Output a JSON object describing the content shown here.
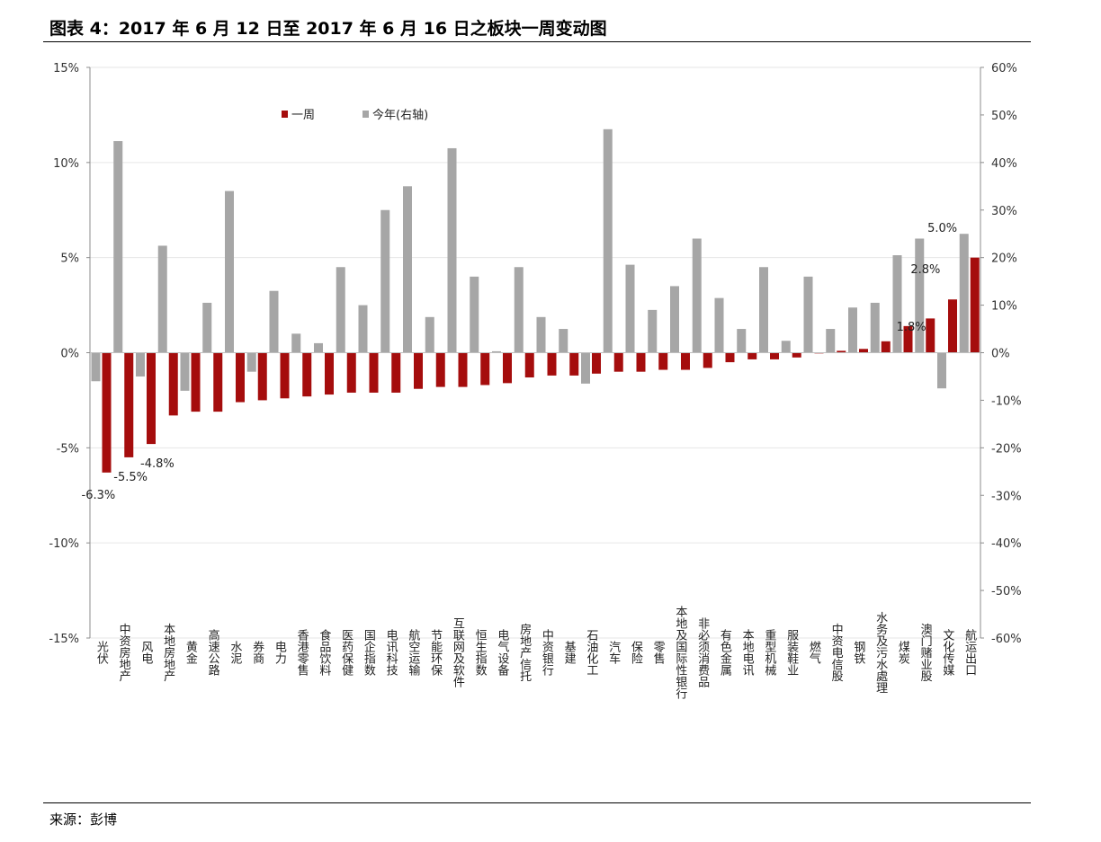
{
  "header": {
    "title": "图表 4：2017 年 6 月 12 日至 2017 年 6 月 16 日之板块一周变动图"
  },
  "footer": {
    "source": "来源：彭博"
  },
  "chart_data": {
    "type": "bar",
    "title": "图表 4：2017 年 6 月 12 日至 2017 年 6 月 16 日之板块一周变动图",
    "categories": [
      "光伏",
      "中资房地产",
      "风电",
      "本地房地产",
      "黄金",
      "高速公路",
      "水泥",
      "券商",
      "电力",
      "香港零售",
      "食品饮料",
      "医药保健",
      "国企指数",
      "电讯科技",
      "航空运输",
      "节能环保",
      "互联网及软件",
      "恒生指数",
      "电气设备",
      "房地产信托",
      "中资银行",
      "基建",
      "石油化工",
      "汽车",
      "保险",
      "零售",
      "本地及国际性银行",
      "非必须消费品",
      "有色金属",
      "本地电讯",
      "重型机械",
      "服装鞋业",
      "燃气",
      "中资电信股",
      "钢铁",
      "水务及污水處理",
      "煤炭",
      "澳门赌业股",
      "文化传媒",
      "航运出口"
    ],
    "series": [
      {
        "name": "一周",
        "axis": "left",
        "color": "#a50d0d",
        "values": [
          -6.3,
          -5.5,
          -4.8,
          -3.3,
          -3.1,
          -3.1,
          -2.6,
          -2.5,
          -2.4,
          -2.3,
          -2.2,
          -2.1,
          -2.1,
          -2.1,
          -1.9,
          -1.8,
          -1.8,
          -1.7,
          -1.6,
          -1.3,
          -1.2,
          -1.2,
          -1.1,
          -1.0,
          -1.0,
          -0.9,
          -0.9,
          -0.8,
          -0.5,
          -0.35,
          -0.35,
          -0.25,
          0.0,
          0.1,
          0.2,
          0.6,
          1.4,
          1.8,
          2.8,
          5.0
        ]
      },
      {
        "name": "今年(右轴)",
        "axis": "right",
        "color": "#a6a6a6",
        "values": [
          -6,
          44.5,
          -5,
          22.5,
          -8,
          10.5,
          34,
          -4,
          13,
          4,
          2,
          18,
          10,
          30,
          35,
          7.5,
          43,
          16,
          0.3,
          18,
          7.5,
          5,
          -6.5,
          47,
          18.5,
          9,
          14,
          24,
          11.5,
          5,
          18,
          2.5,
          16,
          5,
          9.5,
          10.5,
          20.5,
          24,
          -7.5,
          25
        ]
      }
    ],
    "data_labels": [
      {
        "category": "光伏",
        "text": "-6.3%"
      },
      {
        "category": "中资房地产",
        "text": "-5.5%"
      },
      {
        "category": "风电",
        "text": "-4.8%"
      },
      {
        "category": "澳门赌业股",
        "text": "1.8%"
      },
      {
        "category": "文化传媒",
        "text": "2.8%"
      },
      {
        "category": "航运出口",
        "text": "5.0%"
      }
    ],
    "y_left": {
      "min": -15,
      "max": 15,
      "step": 5,
      "ticks": [
        "-15%",
        "-10%",
        "-5%",
        "0%",
        "5%",
        "10%",
        "15%"
      ]
    },
    "y_right": {
      "min": -60,
      "max": 60,
      "step": 10,
      "ticks": [
        "-60%",
        "-50%",
        "-40%",
        "-30%",
        "-20%",
        "-10%",
        "0%",
        "10%",
        "20%",
        "30%",
        "40%",
        "50%",
        "60%"
      ]
    },
    "legend": {
      "position": "top-left",
      "items": [
        "一周",
        "今年(右轴)"
      ]
    },
    "grid": true
  }
}
